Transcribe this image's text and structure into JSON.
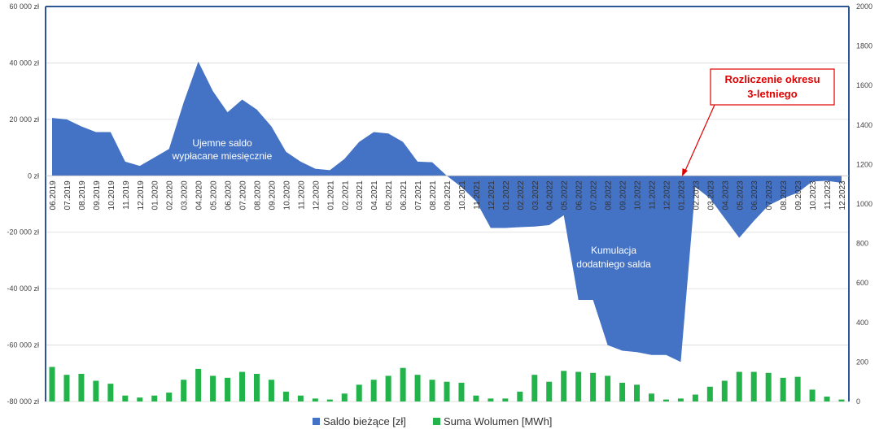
{
  "chart_data": {
    "type": "area",
    "title": "",
    "xlabel": "",
    "ylabel": "",
    "categories": [
      "06.2019",
      "07.2019",
      "08.2019",
      "09.2019",
      "10.2019",
      "11.2019",
      "12.2019",
      "01.2020",
      "02.2020",
      "03.2020",
      "04.2020",
      "05.2020",
      "06.2020",
      "07.2020",
      "08.2020",
      "09.2020",
      "10.2020",
      "11.2020",
      "12.2020",
      "01.2021",
      "02.2021",
      "03.2021",
      "04.2021",
      "05.2021",
      "06.2021",
      "07.2021",
      "08.2021",
      "09.2021",
      "10.2021",
      "11.2021",
      "12.2021",
      "01.2022",
      "02.2022",
      "03.2022",
      "04.2022",
      "05.2022",
      "06.2022",
      "07.2022",
      "08.2022",
      "09.2022",
      "10.2022",
      "11.2022",
      "12.2022",
      "01.2023",
      "02.2023",
      "03.2023",
      "04.2023",
      "05.2023",
      "06.2023",
      "07.2023",
      "08.2023",
      "09.2023",
      "10.2023",
      "11.2023",
      "12.2023"
    ],
    "series": [
      {
        "name": "Saldo bieżące [zł]",
        "kind": "area",
        "axis": "left",
        "color": "#4472c4",
        "values": [
          20500,
          20000,
          17500,
          15500,
          15500,
          5000,
          3500,
          6500,
          9500,
          26000,
          40500,
          30000,
          22500,
          27000,
          23500,
          17500,
          8500,
          5000,
          2500,
          2000,
          6000,
          12000,
          15500,
          15000,
          12000,
          5000,
          4800,
          0,
          -4000,
          -9000,
          -18500,
          -18500,
          -18200,
          -18000,
          -17500,
          -14000,
          -44000,
          -44000,
          -60000,
          -62000,
          -62500,
          -63500,
          -63500,
          -66000,
          -4000,
          -8000,
          -15000,
          -22000,
          -16000,
          -10500,
          -8000,
          -6000,
          -2000,
          -1800,
          -2500
        ]
      },
      {
        "name": "Suma Wolumen [MWh]",
        "kind": "bar",
        "axis": "right",
        "color": "#22b34a",
        "values": [
          175,
          135,
          140,
          105,
          90,
          30,
          20,
          30,
          45,
          110,
          165,
          130,
          120,
          150,
          140,
          110,
          50,
          30,
          15,
          10,
          40,
          85,
          110,
          130,
          170,
          135,
          110,
          100,
          95,
          30,
          15,
          15,
          50,
          135,
          100,
          155,
          150,
          145,
          130,
          95,
          85,
          40,
          10,
          15,
          35,
          75,
          105,
          150,
          150,
          145,
          120,
          125,
          60,
          25,
          10
        ]
      }
    ],
    "y_left": {
      "range": [
        -80000,
        60000
      ],
      "ticks": [
        60000,
        40000,
        20000,
        0,
        -20000,
        -40000,
        -60000,
        -80000
      ],
      "tick_labels": [
        "60 000 zł",
        "40 000 zł",
        "20 000 zł",
        "0 zł",
        "-20 000 zł",
        "-40 000 zł",
        "-60 000 zł",
        "-80 000 zł"
      ]
    },
    "y_right": {
      "range": [
        0,
        2000
      ],
      "ticks": [
        2000,
        1800,
        1600,
        1400,
        1200,
        1000,
        800,
        600,
        400,
        200,
        0
      ],
      "tick_labels": [
        "2000",
        "1800",
        "1600",
        "1400",
        "1200",
        "1000",
        "800",
        "600",
        "400",
        "200",
        "0"
      ]
    },
    "grid": true,
    "legend_position": "bottom",
    "annotations": [
      {
        "id": "negative",
        "lines": [
          "Ujemne saldo",
          "wypłacane miesięcznie"
        ]
      },
      {
        "id": "positive",
        "lines": [
          "Kumulacja",
          "dodatniego salda"
        ]
      },
      {
        "id": "settlement",
        "lines": [
          "Rozliczenie okresu",
          "3-letniego"
        ],
        "color": "#e00000",
        "points_to": "01.2023"
      }
    ]
  }
}
